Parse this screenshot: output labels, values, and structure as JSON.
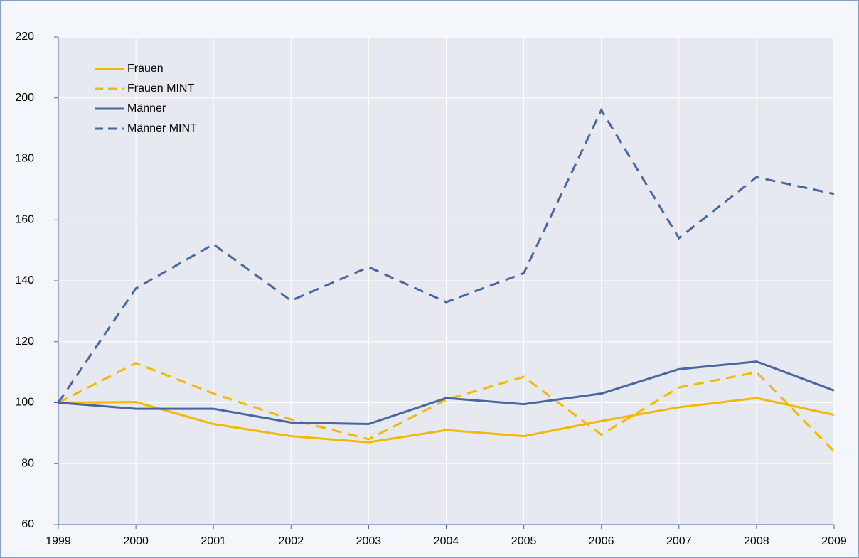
{
  "chart_data": {
    "type": "line",
    "categories": [
      "1999",
      "2000",
      "2001",
      "2002",
      "2003",
      "2004",
      "2005",
      "2006",
      "2007",
      "2008",
      "2009"
    ],
    "series": [
      {
        "name": "Frauen",
        "color": "#f5b800",
        "dashed": false,
        "values": [
          100,
          100.2,
          93,
          89,
          87,
          91,
          89,
          94,
          98.5,
          101.5,
          96
        ]
      },
      {
        "name": "Frauen MINT",
        "color": "#f5b800",
        "dashed": true,
        "values": [
          100,
          113,
          103,
          94.5,
          88,
          101,
          108.5,
          89.5,
          105,
          110,
          84
        ]
      },
      {
        "name": "Männer",
        "color": "#4a66a0",
        "dashed": false,
        "values": [
          100,
          98,
          98,
          93.5,
          93,
          101.5,
          99.5,
          103,
          111,
          113.5,
          104
        ]
      },
      {
        "name": "Männer MINT",
        "color": "#4a66a0",
        "dashed": true,
        "values": [
          100,
          137.5,
          152,
          133.5,
          144.5,
          133,
          142.5,
          196,
          154,
          174,
          168.5
        ]
      }
    ],
    "ylim": [
      60,
      220
    ],
    "yticks": [
      60,
      80,
      100,
      120,
      140,
      160,
      180,
      200,
      220
    ],
    "grid": true,
    "legend": "top-left"
  }
}
